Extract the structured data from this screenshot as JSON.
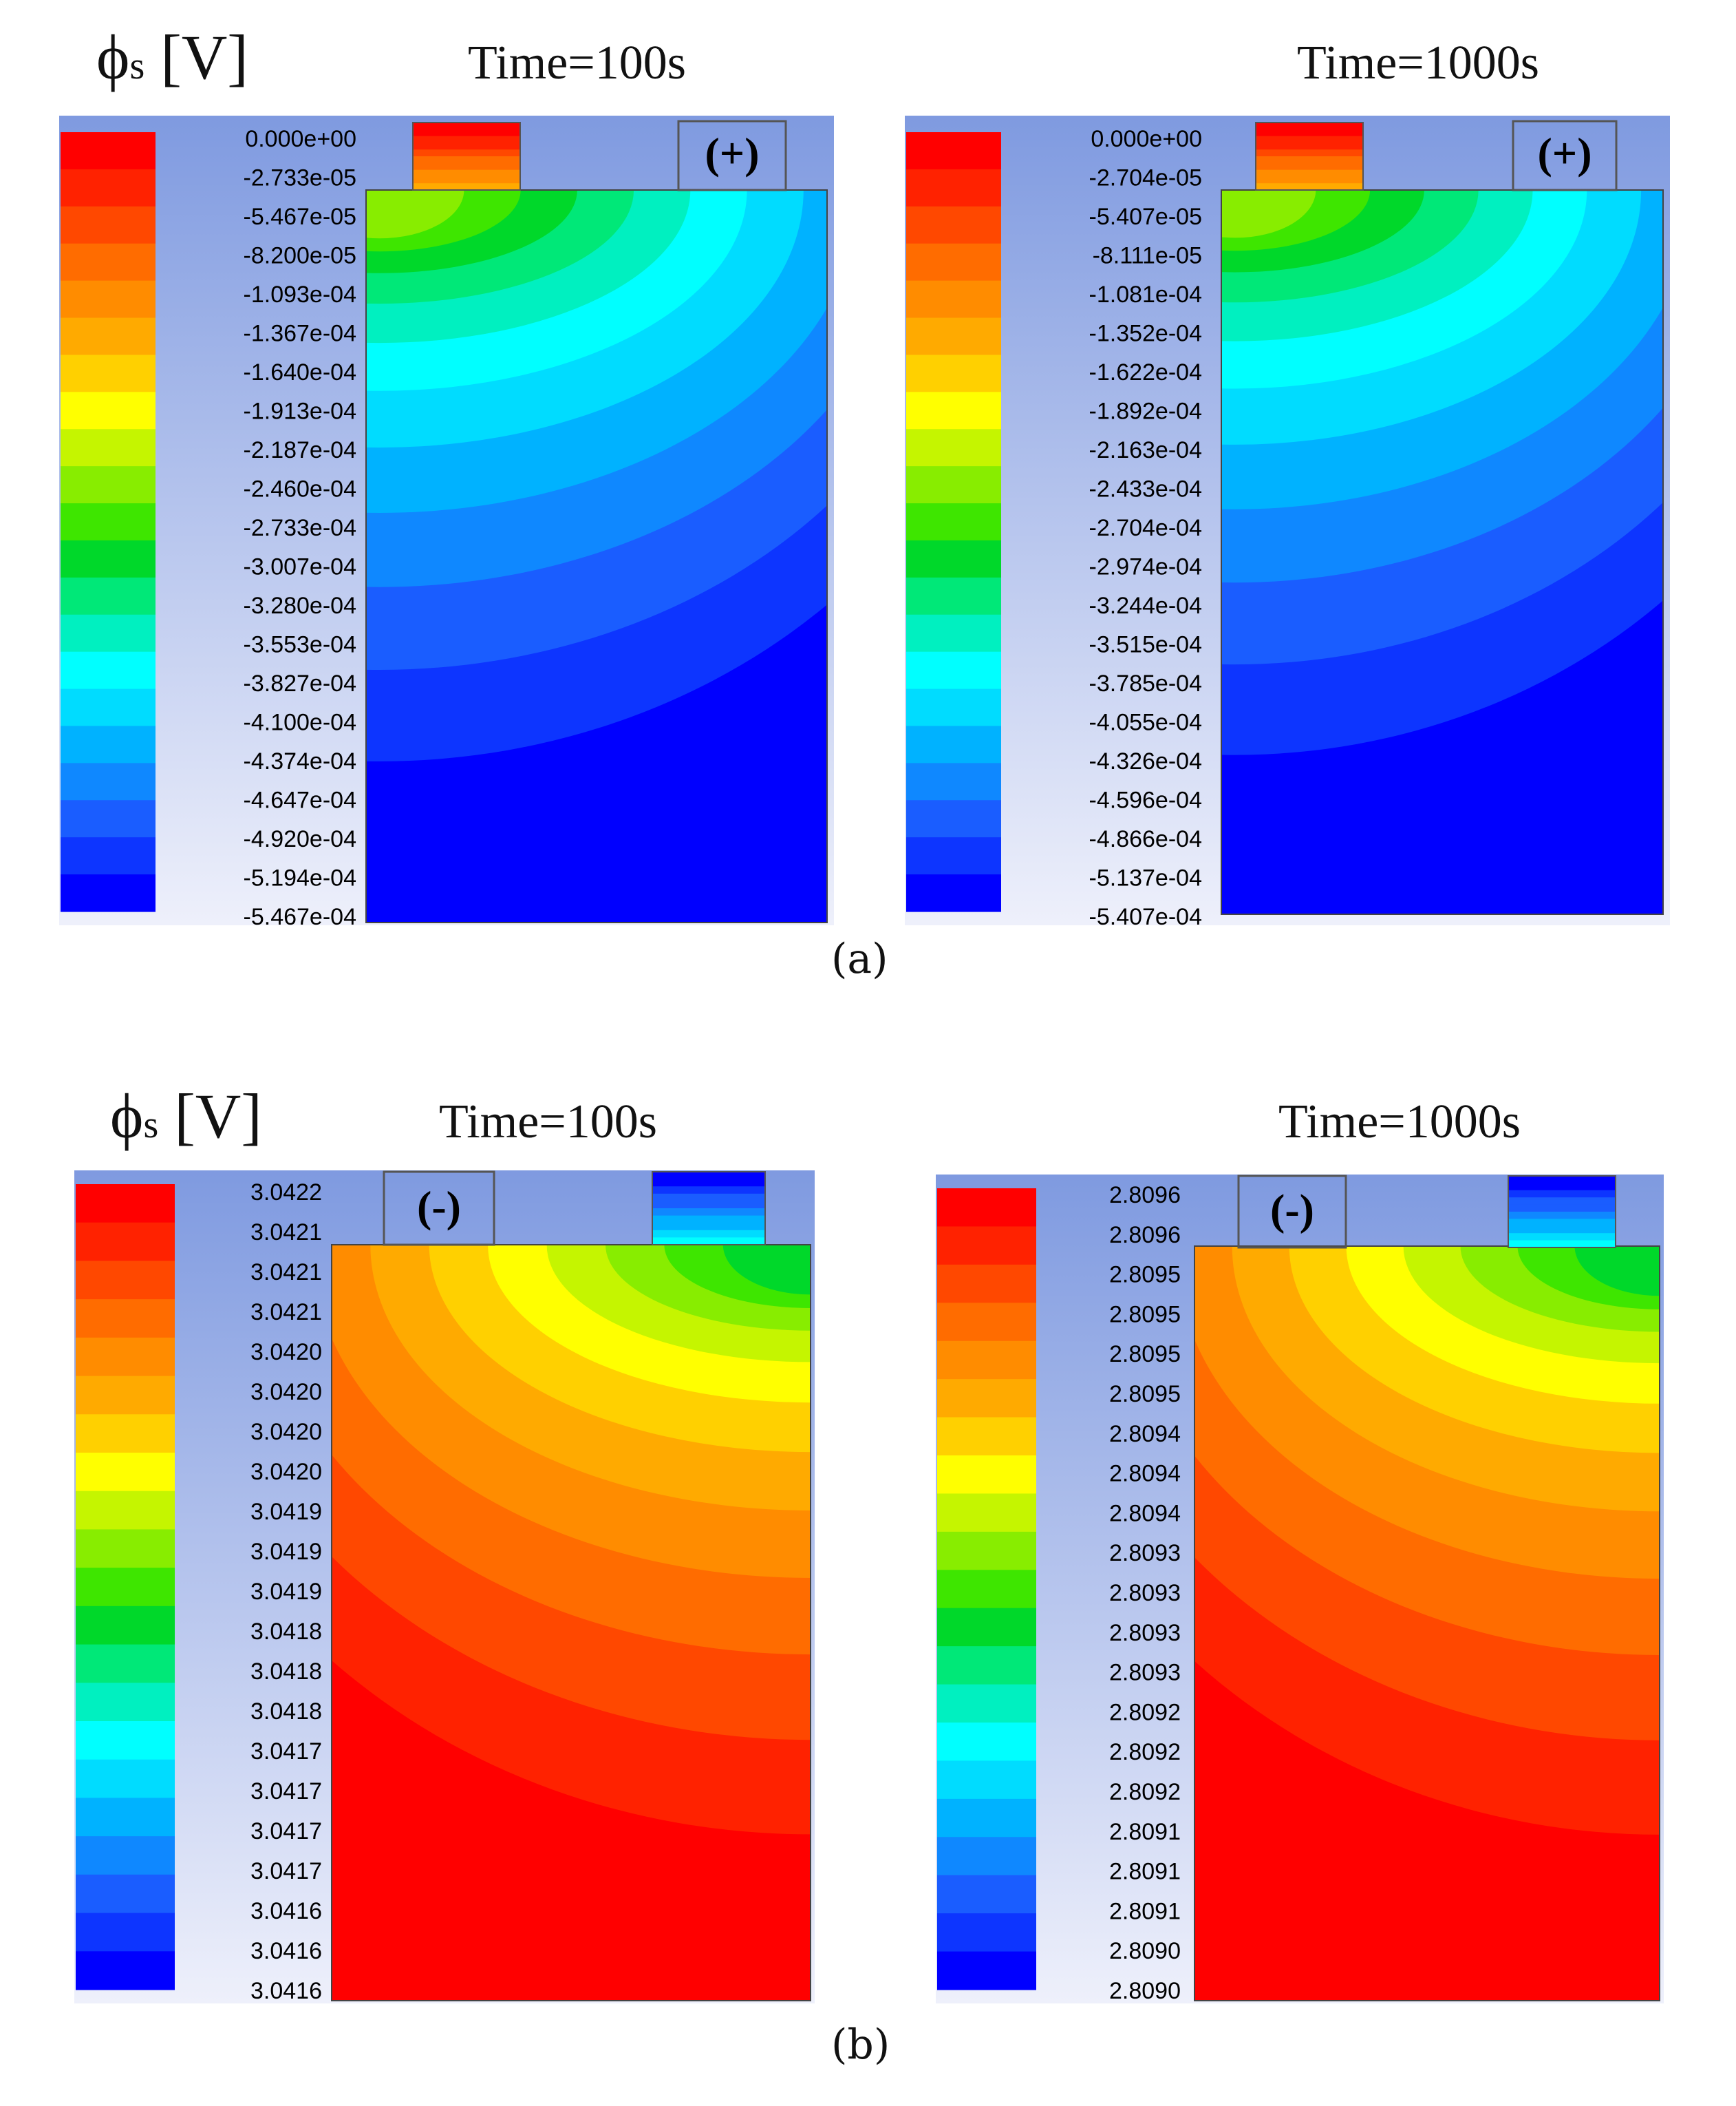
{
  "colors": {
    "bands": [
      "#0000ff",
      "#0d35ff",
      "#1a5dff",
      "#0f88ff",
      "#00b2ff",
      "#00dcff",
      "#00ffff",
      "#00f0c0",
      "#00e878",
      "#00d82a",
      "#3ee600",
      "#88ed00",
      "#c5f500",
      "#ffff00",
      "#ffd000",
      "#ffaa00",
      "#ff8c00",
      "#ff6c00",
      "#ff4800",
      "#ff2200",
      "#ff0000"
    ],
    "background_top": "#7f9ae0",
    "background_bottom": "#eef0fb"
  },
  "figure": {
    "caption_a": "(a)",
    "caption_b": "(b)",
    "ylabel_a": {
      "symbol": "ϕ",
      "sub": "s",
      "unit": " [V]"
    },
    "ylabel_b": {
      "symbol": "ϕ",
      "sub": "s",
      "unit": " [V]"
    }
  },
  "chart_data": [
    {
      "id": "a_100s",
      "type": "heatmap",
      "title": "Time=100s",
      "tab_label": "(+)",
      "tab_color_scheme": "warm",
      "variable": "ϕs [V]",
      "legend_max_at_top": true,
      "legend_labels": [
        "0.000e+00",
        "-2.733e-05",
        "-5.467e-05",
        "-8.200e-05",
        "-1.093e-04",
        "-1.367e-04",
        "-1.640e-04",
        "-1.913e-04",
        "-2.187e-04",
        "-2.460e-04",
        "-2.733e-04",
        "-3.007e-04",
        "-3.280e-04",
        "-3.553e-04",
        "-3.827e-04",
        "-4.100e-04",
        "-4.374e-04",
        "-4.647e-04",
        "-4.920e-04",
        "-5.194e-04",
        "-5.467e-04"
      ],
      "range": [
        -0.0005467,
        0.0
      ]
    },
    {
      "id": "a_1000s",
      "type": "heatmap",
      "title": "Time=1000s",
      "tab_label": "(+)",
      "tab_color_scheme": "warm",
      "variable": "ϕs [V]",
      "legend_max_at_top": true,
      "legend_labels": [
        "0.000e+00",
        "-2.704e-05",
        "-5.407e-05",
        "-8.111e-05",
        "-1.081e-04",
        "-1.352e-04",
        "-1.622e-04",
        "-1.892e-04",
        "-2.163e-04",
        "-2.433e-04",
        "-2.704e-04",
        "-2.974e-04",
        "-3.244e-04",
        "-3.515e-04",
        "-3.785e-04",
        "-4.055e-04",
        "-4.326e-04",
        "-4.596e-04",
        "-4.866e-04",
        "-5.137e-04",
        "-5.407e-04"
      ],
      "range": [
        -0.0005407,
        0.0
      ]
    },
    {
      "id": "b_100s",
      "type": "heatmap",
      "title": "Time=100s",
      "tab_label": "(-)",
      "tab_color_scheme": "cool",
      "variable": "ϕs [V]",
      "legend_max_at_top": true,
      "legend_labels": [
        "3.0422",
        "3.0421",
        "3.0421",
        "3.0421",
        "3.0420",
        "3.0420",
        "3.0420",
        "3.0420",
        "3.0419",
        "3.0419",
        "3.0419",
        "3.0418",
        "3.0418",
        "3.0418",
        "3.0417",
        "3.0417",
        "3.0417",
        "3.0417",
        "3.0416",
        "3.0416",
        "3.0416"
      ],
      "range": [
        3.0416,
        3.0422
      ]
    },
    {
      "id": "b_1000s",
      "type": "heatmap",
      "title": "Time=1000s",
      "tab_label": "(-)",
      "tab_color_scheme": "cool",
      "variable": "ϕs [V]",
      "legend_max_at_top": true,
      "legend_labels": [
        "2.8096",
        "2.8096",
        "2.8095",
        "2.8095",
        "2.8095",
        "2.8095",
        "2.8094",
        "2.8094",
        "2.8094",
        "2.8093",
        "2.8093",
        "2.8093",
        "2.8093",
        "2.8092",
        "2.8092",
        "2.8092",
        "2.8091",
        "2.8091",
        "2.8091",
        "2.8090",
        "2.8090"
      ],
      "range": [
        2.809,
        2.8096
      ]
    }
  ]
}
